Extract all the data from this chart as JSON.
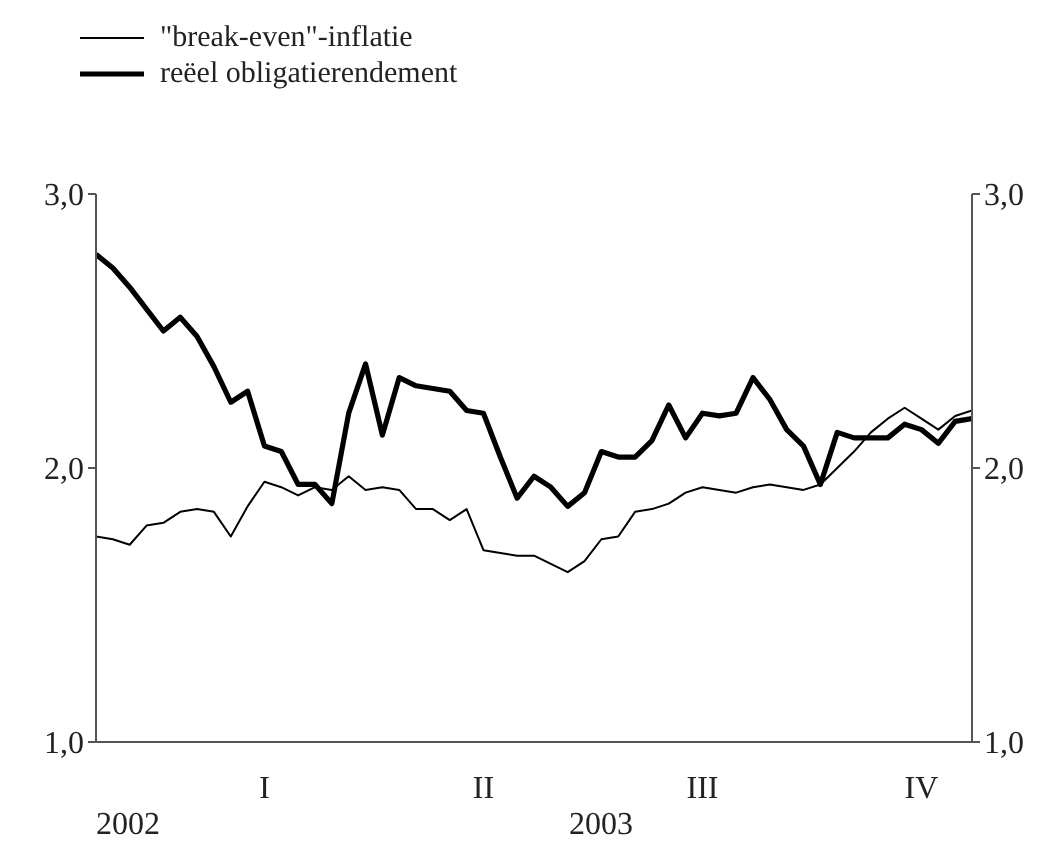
{
  "chart_data": {
    "type": "line",
    "categories": [
      null,
      null,
      null,
      null,
      null,
      null,
      null,
      null,
      null,
      null,
      "I",
      null,
      null,
      null,
      null,
      null,
      null,
      null,
      null,
      null,
      null,
      null,
      null,
      "II",
      null,
      null,
      null,
      null,
      null,
      null,
      null,
      null,
      null,
      null,
      null,
      null,
      "III",
      null,
      null,
      null,
      null,
      null,
      null,
      null,
      null,
      null,
      null,
      null,
      null,
      "IV",
      null,
      null,
      null
    ],
    "series": [
      {
        "name": "\"break-even\"-inflatie",
        "color": "#000000",
        "values": [
          1.75,
          1.74,
          1.72,
          1.79,
          1.8,
          1.84,
          1.85,
          1.84,
          1.75,
          1.86,
          1.95,
          1.93,
          1.9,
          1.93,
          1.92,
          1.97,
          1.92,
          1.93,
          1.92,
          1.85,
          1.85,
          1.81,
          1.85,
          1.7,
          1.69,
          1.68,
          1.68,
          1.65,
          1.62,
          1.66,
          1.74,
          1.75,
          1.84,
          1.85,
          1.87,
          1.91,
          1.93,
          1.92,
          1.91,
          1.93,
          1.94,
          1.93,
          1.92,
          1.94,
          2.0,
          2.06,
          2.13,
          2.18,
          2.22,
          2.18,
          2.14,
          2.19,
          2.21
        ]
      },
      {
        "name": "reëel obligatierendement",
        "color": "#000000",
        "values": [
          2.78,
          2.73,
          2.66,
          2.58,
          2.5,
          2.55,
          2.48,
          2.37,
          2.24,
          2.28,
          2.08,
          2.06,
          1.94,
          1.94,
          1.87,
          2.2,
          2.38,
          2.12,
          2.33,
          2.3,
          2.29,
          2.28,
          2.21,
          2.2,
          2.04,
          1.89,
          1.97,
          1.93,
          1.86,
          1.91,
          2.06,
          2.04,
          2.04,
          2.1,
          2.23,
          2.11,
          2.2,
          2.19,
          2.2,
          2.33,
          2.25,
          2.14,
          2.08,
          1.94,
          2.13,
          2.11,
          2.11,
          2.11,
          2.16,
          2.14,
          2.09,
          2.17,
          2.18
        ]
      }
    ],
    "ylim": [
      1,
      3
    ],
    "yticks": [
      {
        "value": 1,
        "label": "1,0"
      },
      {
        "value": 2,
        "label": "2,0"
      },
      {
        "value": 3,
        "label": "3,0"
      }
    ],
    "y2lim": [
      1,
      3
    ],
    "y2ticks": [
      {
        "value": 1,
        "label": "1,0"
      },
      {
        "value": 2,
        "label": "2,0"
      },
      {
        "value": 3,
        "label": "3,0"
      }
    ],
    "annotations": [
      "2002",
      "2003"
    ],
    "grid": false,
    "legend": "top left"
  }
}
